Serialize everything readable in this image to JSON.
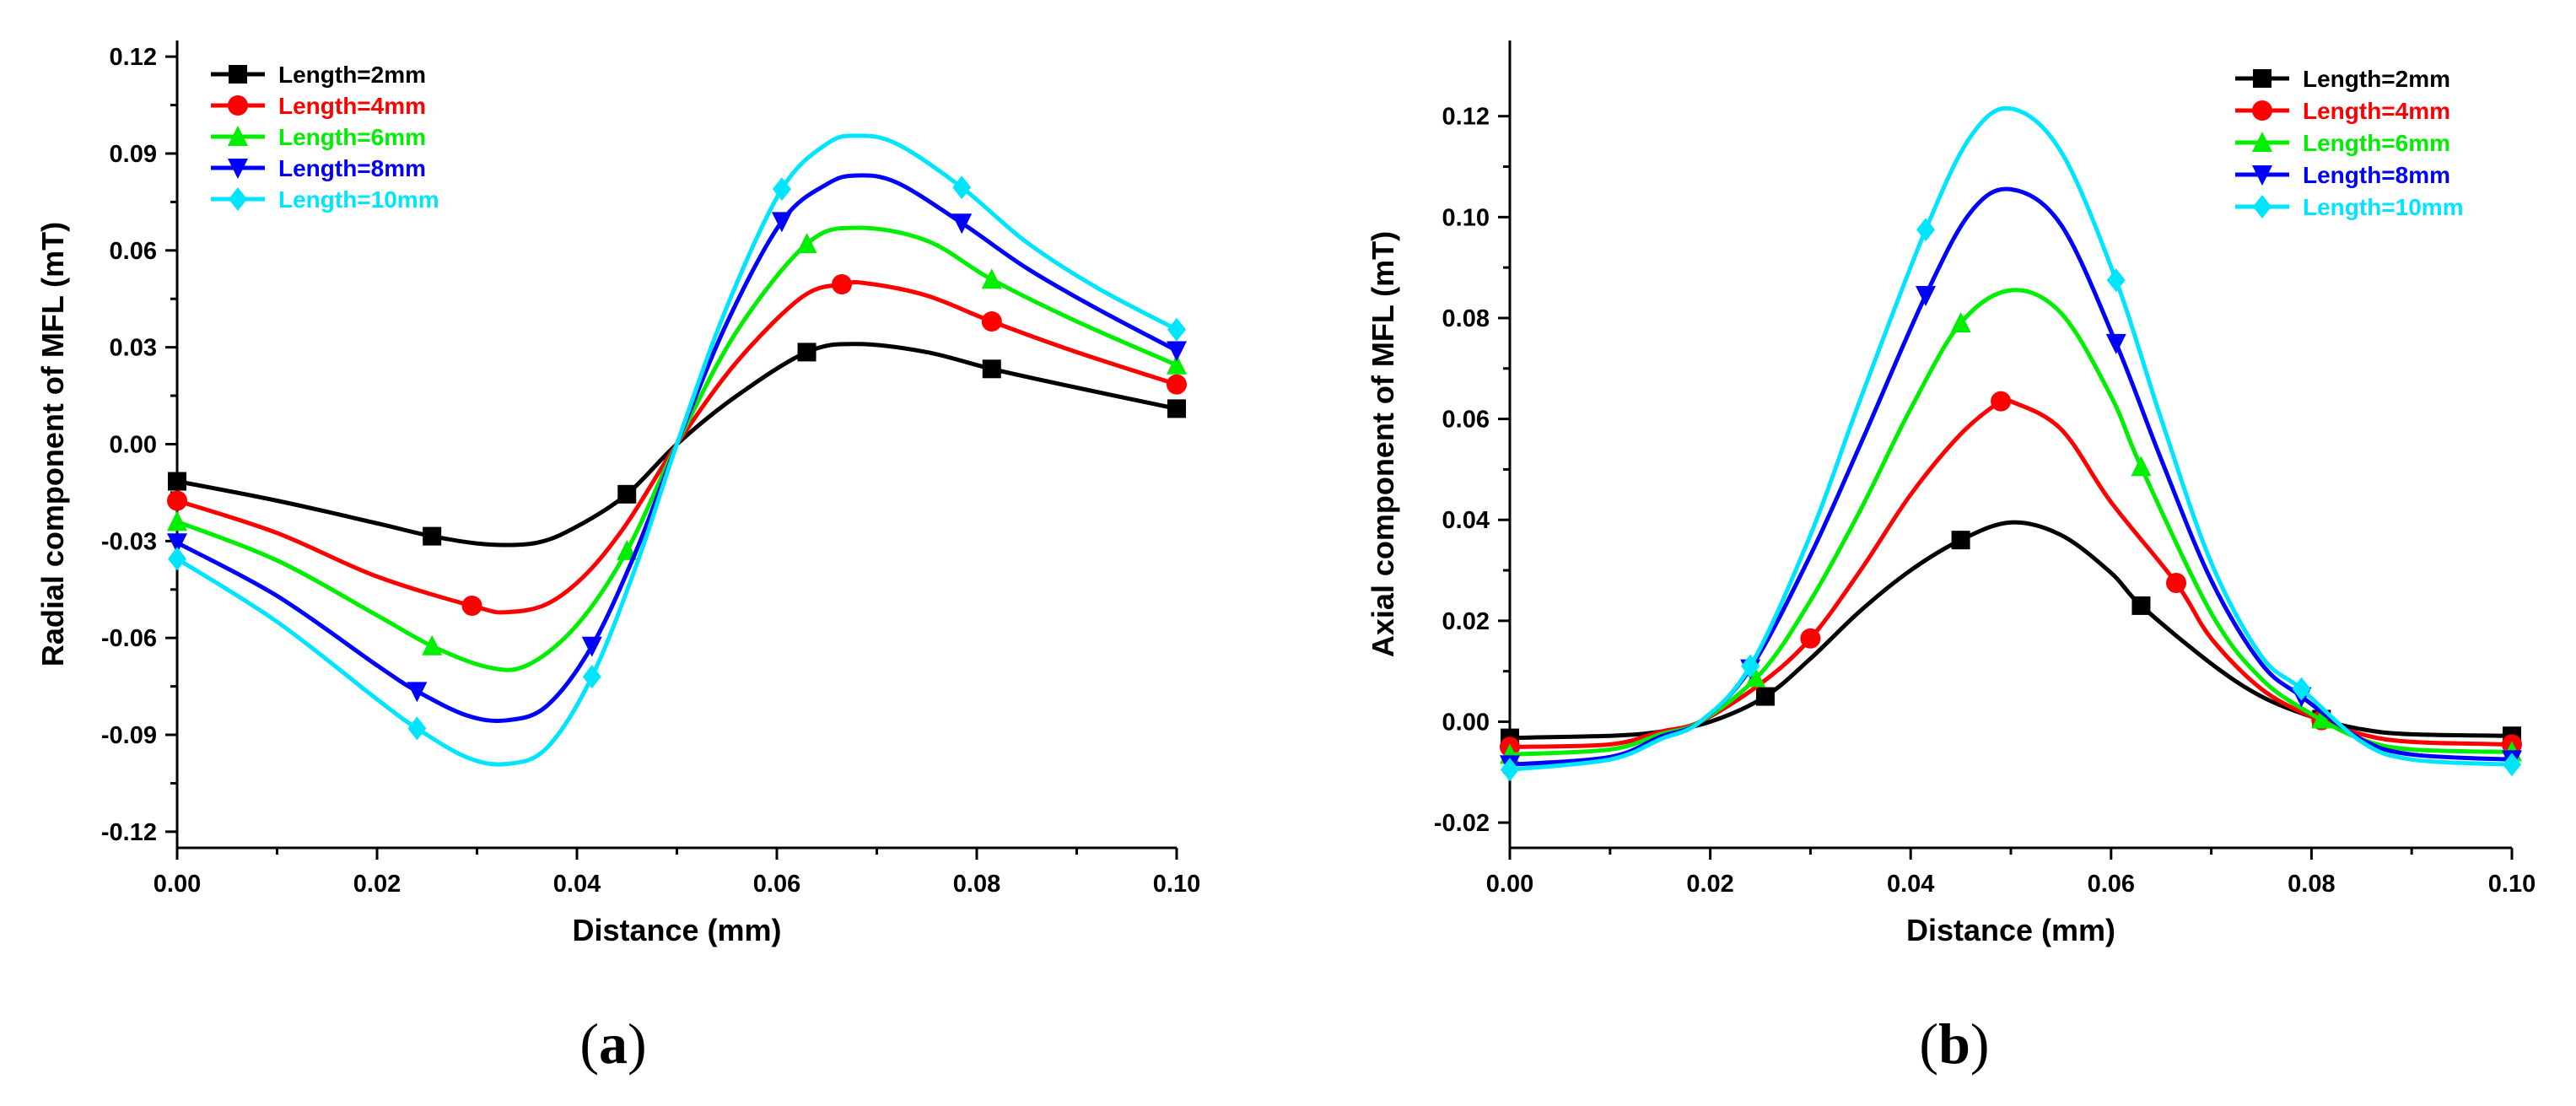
{
  "figure": {
    "panels": [
      {
        "open": "(",
        "letter": "a",
        "close": ")"
      },
      {
        "open": "(",
        "letter": "b",
        "close": ")"
      }
    ]
  },
  "chart_data": [
    {
      "type": "line",
      "panel": "a",
      "xlabel": "Distance (mm)",
      "ylabel": "Radial component of MFL (mT)",
      "xlim": [
        0,
        0.1
      ],
      "ylim": [
        -0.125,
        0.125
      ],
      "xticks": [
        0.0,
        0.02,
        0.04,
        0.06,
        0.08,
        0.1
      ],
      "xtick_labels": [
        "0.00",
        "0.02",
        "0.04",
        "0.06",
        "0.08",
        "0.10"
      ],
      "yticks": [
        0.12,
        0.09,
        0.06,
        0.03,
        0.0,
        -0.03,
        -0.06,
        -0.09,
        -0.12
      ],
      "ytick_labels": [
        "0.12",
        "0.09",
        "0.06",
        "0.03",
        "0.00",
        "-0.03",
        "-0.06",
        "-0.09",
        "-0.12"
      ],
      "legend_position": "top-left",
      "series": [
        {
          "name": "Length=2mm",
          "color": "#000000",
          "marker": "square",
          "x": [
            0,
            0.01,
            0.02,
            0.0255,
            0.031,
            0.036,
            0.04,
            0.045,
            0.05,
            0.056,
            0.063,
            0.068,
            0.075,
            0.0815,
            0.09,
            0.1
          ],
          "y": [
            -0.0115,
            -0.0175,
            -0.0245,
            -0.0285,
            -0.031,
            -0.0305,
            -0.0255,
            -0.0155,
            0.0,
            0.015,
            0.0285,
            0.031,
            0.0285,
            0.0233,
            0.0175,
            0.011
          ],
          "markers_x": [
            0,
            0.0255,
            0.045,
            0.063,
            0.0815,
            0.1
          ]
        },
        {
          "name": "Length=4mm",
          "color": "#ff0000",
          "marker": "circle",
          "x": [
            0,
            0.01,
            0.02,
            0.03,
            0.033,
            0.037,
            0.041,
            0.045,
            0.05,
            0.056,
            0.0625,
            0.0665,
            0.069,
            0.075,
            0.0815,
            0.09,
            0.1
          ],
          "y": [
            -0.0175,
            -0.0275,
            -0.041,
            -0.0505,
            -0.052,
            -0.0495,
            -0.04,
            -0.0245,
            0.0,
            0.0255,
            0.0455,
            0.0495,
            0.0498,
            0.046,
            0.038,
            0.0285,
            0.0185
          ],
          "markers_x": [
            0,
            0.0295,
            0.0665,
            0.0815,
            0.1
          ]
        },
        {
          "name": "Length=6mm",
          "color": "#00ee00",
          "marker": "triangle-up",
          "x": [
            0,
            0.01,
            0.02,
            0.0255,
            0.031,
            0.035,
            0.04,
            0.045,
            0.05,
            0.056,
            0.063,
            0.068,
            0.075,
            0.0815,
            0.09,
            0.1
          ],
          "y": [
            -0.024,
            -0.036,
            -0.053,
            -0.0625,
            -0.069,
            -0.0685,
            -0.056,
            -0.033,
            0.0,
            0.035,
            0.062,
            0.067,
            0.063,
            0.051,
            0.038,
            0.0245
          ],
          "markers_x": [
            0,
            0.0255,
            0.045,
            0.063,
            0.0815,
            0.1
          ]
        },
        {
          "name": "Length=8mm",
          "color": "#0000ff",
          "marker": "triangle-down",
          "x": [
            0,
            0.01,
            0.02,
            0.024,
            0.029,
            0.033,
            0.037,
            0.0415,
            0.046,
            0.05,
            0.055,
            0.0605,
            0.065,
            0.068,
            0.072,
            0.0785,
            0.085,
            0.092,
            0.1
          ],
          "y": [
            -0.0305,
            -0.047,
            -0.0685,
            -0.0765,
            -0.084,
            -0.0855,
            -0.081,
            -0.0625,
            -0.0325,
            0.0,
            0.0375,
            0.069,
            0.0805,
            0.0832,
            0.081,
            0.0685,
            0.0545,
            0.042,
            0.029
          ],
          "markers_x": [
            0,
            0.024,
            0.0415,
            0.0605,
            0.0785,
            0.1
          ]
        },
        {
          "name": "Length=10mm",
          "color": "#00e5ff",
          "marker": "diamond",
          "x": [
            0,
            0.01,
            0.02,
            0.024,
            0.029,
            0.033,
            0.037,
            0.0415,
            0.046,
            0.05,
            0.055,
            0.0605,
            0.065,
            0.068,
            0.072,
            0.0785,
            0.085,
            0.092,
            0.1
          ],
          "y": [
            -0.0355,
            -0.055,
            -0.079,
            -0.088,
            -0.097,
            -0.099,
            -0.094,
            -0.072,
            -0.037,
            0.0,
            0.0425,
            0.079,
            0.093,
            0.0955,
            0.093,
            0.0795,
            0.0625,
            0.0485,
            0.0355
          ],
          "markers_x": [
            0,
            0.024,
            0.0415,
            0.0605,
            0.0785,
            0.1
          ]
        }
      ]
    },
    {
      "type": "line",
      "panel": "b",
      "xlabel": "Distance (mm)",
      "ylabel": "Axial component of MFL (mT)",
      "xlim": [
        0,
        0.1
      ],
      "ylim": [
        -0.025,
        0.135
      ],
      "xticks": [
        0.0,
        0.02,
        0.04,
        0.06,
        0.08,
        0.1
      ],
      "xtick_labels": [
        "0.00",
        "0.02",
        "0.04",
        "0.06",
        "0.08",
        "0.10"
      ],
      "yticks": [
        0.12,
        0.1,
        0.08,
        0.06,
        0.04,
        0.02,
        0.0,
        -0.02
      ],
      "ytick_labels": [
        "0.12",
        "0.10",
        "0.08",
        "0.06",
        "0.04",
        "0.02",
        "0.00",
        "-0.02"
      ],
      "legend_position": "top-right",
      "series": [
        {
          "name": "Length=2mm",
          "color": "#000000",
          "marker": "square",
          "x": [
            0,
            0.01,
            0.015,
            0.02,
            0.0255,
            0.03,
            0.035,
            0.04,
            0.045,
            0.05,
            0.055,
            0.06,
            0.063,
            0.07,
            0.075,
            0.08,
            0.085,
            0.09,
            0.1
          ],
          "y": [
            -0.0032,
            -0.0028,
            -0.002,
            0.0,
            0.005,
            0.0125,
            0.022,
            0.03,
            0.036,
            0.0395,
            0.037,
            0.0295,
            0.023,
            0.0115,
            0.005,
            0.001,
            -0.0015,
            -0.0025,
            -0.0028
          ],
          "markers_x": [
            0,
            0.0255,
            0.045,
            0.063,
            0.081,
            0.1
          ]
        },
        {
          "name": "Length=4mm",
          "color": "#ff0000",
          "marker": "circle",
          "x": [
            0,
            0.01,
            0.015,
            0.019,
            0.025,
            0.03,
            0.035,
            0.04,
            0.045,
            0.049,
            0.05,
            0.055,
            0.06,
            0.0665,
            0.07,
            0.075,
            0.08,
            0.085,
            0.09,
            0.1
          ],
          "y": [
            -0.005,
            -0.0045,
            -0.002,
            0.0,
            0.0075,
            0.0165,
            0.03,
            0.045,
            0.057,
            0.0635,
            0.0635,
            0.058,
            0.0435,
            0.0275,
            0.0165,
            0.0065,
            0.001,
            -0.0025,
            -0.004,
            -0.0045
          ],
          "markers_x": [
            0,
            0.03,
            0.049,
            0.0665,
            0.081,
            0.1
          ]
        },
        {
          "name": "Length=6mm",
          "color": "#00ee00",
          "marker": "triangle-up",
          "x": [
            0,
            0.01,
            0.015,
            0.019,
            0.025,
            0.03,
            0.035,
            0.04,
            0.045,
            0.05,
            0.055,
            0.06,
            0.063,
            0.07,
            0.075,
            0.08,
            0.085,
            0.09,
            0.1
          ],
          "y": [
            -0.0065,
            -0.0055,
            -0.0025,
            0.0,
            0.0095,
            0.024,
            0.042,
            0.062,
            0.079,
            0.0855,
            0.081,
            0.0645,
            0.0505,
            0.0215,
            0.0085,
            0.0015,
            -0.0035,
            -0.0055,
            -0.006
          ],
          "markers_x": [
            0,
            0.0245,
            0.045,
            0.063,
            0.081,
            0.1
          ]
        },
        {
          "name": "Length=8mm",
          "color": "#0000ff",
          "marker": "triangle-down",
          "x": [
            0,
            0.01,
            0.015,
            0.019,
            0.024,
            0.03,
            0.035,
            0.0415,
            0.046,
            0.05,
            0.055,
            0.0605,
            0.065,
            0.07,
            0.075,
            0.079,
            0.085,
            0.09,
            0.1
          ],
          "y": [
            -0.0085,
            -0.007,
            -0.003,
            0.0,
            0.0105,
            0.033,
            0.055,
            0.0845,
            0.101,
            0.1055,
            0.0985,
            0.075,
            0.052,
            0.028,
            0.0115,
            0.005,
            -0.0035,
            -0.0065,
            -0.0075
          ],
          "markers_x": [
            0,
            0.024,
            0.0415,
            0.0605,
            0.079,
            0.1
          ]
        },
        {
          "name": "Length=10mm",
          "color": "#00e5ff",
          "marker": "diamond",
          "x": [
            0,
            0.01,
            0.015,
            0.019,
            0.024,
            0.03,
            0.035,
            0.0415,
            0.046,
            0.05,
            0.055,
            0.0605,
            0.065,
            0.07,
            0.075,
            0.079,
            0.085,
            0.09,
            0.1
          ],
          "y": [
            -0.0095,
            -0.0075,
            -0.0035,
            0.0,
            0.011,
            0.037,
            0.064,
            0.0975,
            0.116,
            0.1215,
            0.113,
            0.0875,
            0.06,
            0.0315,
            0.013,
            0.0065,
            -0.004,
            -0.0075,
            -0.0085
          ],
          "markers_x": [
            0,
            0.024,
            0.0415,
            0.0605,
            0.079,
            0.1
          ]
        }
      ]
    }
  ]
}
